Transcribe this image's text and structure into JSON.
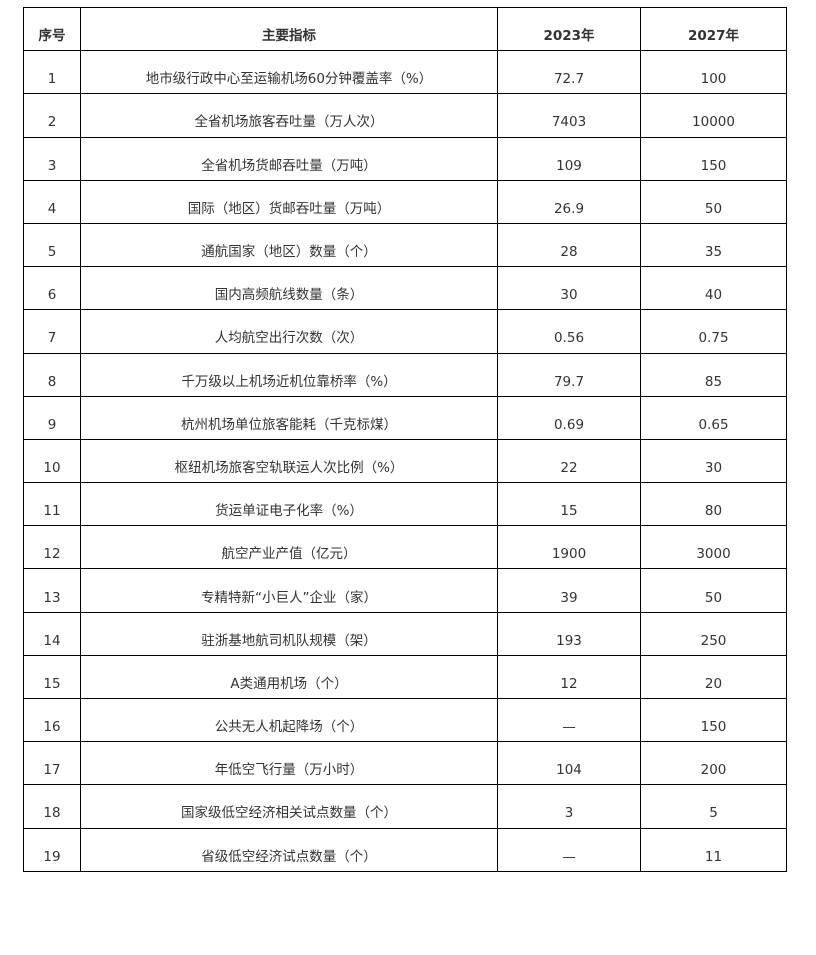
{
  "table": {
    "headers": [
      "序号",
      "主要指标",
      "2023年",
      "2027年"
    ],
    "rows": [
      [
        "1",
        "地市级行政中心至运输机场60分钟覆盖率（%）",
        "72.7",
        "100"
      ],
      [
        "2",
        "全省机场旅客吞吐量（万人次）",
        "7403",
        "10000"
      ],
      [
        "3",
        "全省机场货邮吞吐量（万吨）",
        "109",
        "150"
      ],
      [
        "4",
        "国际（地区）货邮吞吐量（万吨）",
        "26.9",
        "50"
      ],
      [
        "5",
        "通航国家（地区）数量（个）",
        "28",
        "35"
      ],
      [
        "6",
        "国内高频航线数量（条）",
        "30",
        "40"
      ],
      [
        "7",
        "人均航空出行次数（次）",
        "0.56",
        "0.75"
      ],
      [
        "8",
        "千万级以上机场近机位靠桥率（%）",
        "79.7",
        "85"
      ],
      [
        "9",
        "杭州机场单位旅客能耗（千克标煤）",
        "0.69",
        "0.65"
      ],
      [
        "10",
        "枢纽机场旅客空轨联运人次比例（%）",
        "22",
        "30"
      ],
      [
        "11",
        "货运单证电子化率（%）",
        "15",
        "80"
      ],
      [
        "12",
        "航空产业产值（亿元）",
        "1900",
        "3000"
      ],
      [
        "13",
        "专精特新“小巨人”企业（家）",
        "39",
        "50"
      ],
      [
        "14",
        "驻浙基地航司机队规模（架）",
        "193",
        "250"
      ],
      [
        "15",
        "A类通用机场（个）",
        "12",
        "20"
      ],
      [
        "16",
        "公共无人机起降场（个）",
        "—",
        "150"
      ],
      [
        "17",
        "年低空飞行量（万小时）",
        "104",
        "200"
      ],
      [
        "18",
        "国家级低空经济相关试点数量（个）",
        "3",
        "5"
      ],
      [
        "19",
        "省级低空经济试点数量（个）",
        "—",
        "11"
      ]
    ]
  }
}
